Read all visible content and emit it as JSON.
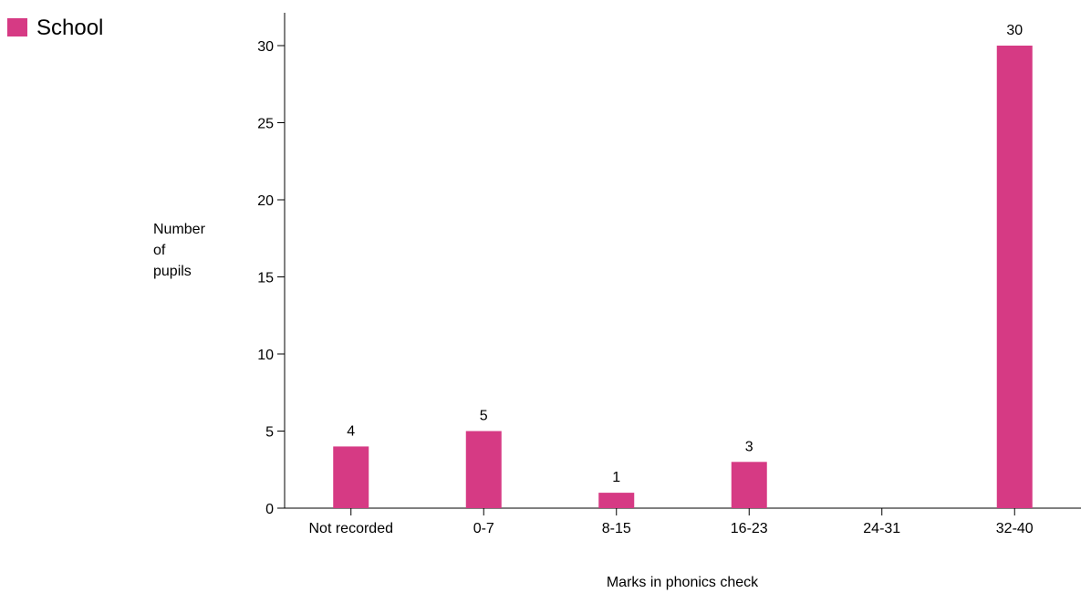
{
  "legend": {
    "label": "School",
    "color": "#d63a84"
  },
  "chart_data": {
    "type": "bar",
    "categories": [
      "Not recorded",
      "0-7",
      "8-15",
      "16-23",
      "24-31",
      "32-40"
    ],
    "series": [
      {
        "name": "School",
        "values": [
          4,
          5,
          1,
          3,
          0,
          30
        ],
        "color": "#d63a84"
      }
    ],
    "data_labels": [
      "4",
      "5",
      "1",
      "3",
      "",
      "30"
    ],
    "xlabel": "Marks in phonics check",
    "ylabel_lines": [
      "Number",
      "of",
      "pupils"
    ],
    "ylim": [
      0,
      32
    ],
    "yticks": [
      0,
      5,
      10,
      15,
      20,
      25,
      30
    ],
    "grid": false,
    "legend_position": "top-left"
  }
}
